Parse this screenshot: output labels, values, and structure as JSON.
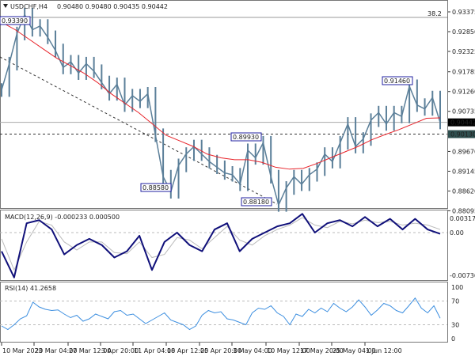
{
  "header": {
    "symbol": "USDCHF,H4",
    "ohlc": "0.90480 0.90480 0.90435 0.90442",
    "menu_icon": "triangle-down-icon"
  },
  "colors": {
    "price": "#5b7f99",
    "ma": "#e8242b",
    "macd": "#10107a",
    "signal": "#bbbbbb",
    "rsi": "#3d8fe0",
    "label_border": "#2020a0",
    "current_price_bg": "#000000",
    "level_bg": "#2f4f4f"
  },
  "chart_data": [
    {
      "type": "line",
      "title": "USDCHF,H4",
      "panel": "price",
      "y_ticks": [
        "0.93375",
        "0.92850",
        "0.92325",
        "0.91785",
        "0.91260",
        "0.90735",
        "0.89670",
        "0.89145",
        "0.88620",
        "0.88095"
      ],
      "ylim": [
        0.88095,
        0.93375
      ],
      "current_price": "0.90442",
      "level_line": "0.90130",
      "fib_label": "38.2",
      "annotations": [
        "0.93390",
        "0.88580",
        "0.89930",
        "0.88180",
        "0.91460"
      ],
      "close": [
        0.913,
        0.92,
        0.928,
        0.933,
        0.929,
        0.93,
        0.927,
        0.9235,
        0.919,
        0.9205,
        0.9175,
        0.92,
        0.918,
        0.915,
        0.912,
        0.9145,
        0.909,
        0.9115,
        0.91,
        0.912,
        0.901,
        0.89,
        0.886,
        0.893,
        0.896,
        0.898,
        0.896,
        0.894,
        0.8925,
        0.891,
        0.8905,
        0.888,
        0.897,
        0.895,
        0.899,
        0.89,
        0.8825,
        0.887,
        0.89,
        0.888,
        0.8905,
        0.892,
        0.896,
        0.894,
        0.899,
        0.904,
        0.898,
        0.9,
        0.905,
        0.907,
        0.904,
        0.907,
        0.906,
        0.914,
        0.909,
        0.908,
        0.911,
        0.9044
      ],
      "ma": [
        0.931,
        0.929,
        0.9265,
        0.924,
        0.9215,
        0.9195,
        0.9175,
        0.915,
        0.912,
        0.9095,
        0.907,
        0.904,
        0.901,
        0.8995,
        0.898,
        0.896,
        0.895,
        0.8945,
        0.8945,
        0.8938,
        0.8925,
        0.892,
        0.8922,
        0.8935,
        0.895,
        0.8965,
        0.898,
        0.8998,
        0.9012,
        0.9025,
        0.904,
        0.9055,
        0.9056
      ]
    },
    {
      "type": "line",
      "panel": "macd",
      "title": "MACD(12,26,9) -0.000233 0.000500",
      "y_ticks": [
        "0.003178",
        "0.00",
        "-0.007361"
      ],
      "macd": [
        -0.003,
        -0.0072,
        0.0015,
        0.002,
        0.0005,
        -0.0035,
        -0.002,
        -0.001,
        -0.002,
        -0.004,
        -0.003,
        -0.0005,
        -0.006,
        -0.0015,
        0.0,
        -0.002,
        -0.003,
        0.0005,
        0.0015,
        -0.003,
        -0.001,
        0.0,
        0.001,
        0.0015,
        0.003,
        0.0,
        0.0015,
        0.002,
        0.001,
        0.0025,
        0.001,
        0.0022,
        0.0005,
        0.0022,
        0.0005,
        -0.0002
      ],
      "signal": [
        -0.001,
        -0.006,
        -0.0015,
        0.0018,
        0.0012,
        -0.0015,
        -0.0028,
        -0.0015,
        -0.0015,
        -0.0032,
        -0.0034,
        -0.0015,
        -0.004,
        -0.0035,
        -0.0008,
        -0.0012,
        -0.0026,
        -0.0008,
        0.001,
        -0.0012,
        -0.002,
        -0.0005,
        0.0005,
        0.0012,
        0.0024,
        0.0012,
        0.0008,
        0.0018,
        0.0014,
        0.002,
        0.0016,
        0.0018,
        0.0012,
        0.0015,
        0.0012,
        0.0005
      ]
    },
    {
      "type": "line",
      "panel": "rsi",
      "title": "RSI(14) 41.2658",
      "y_ticks": [
        "100",
        "70",
        "30",
        "0"
      ],
      "levels": [
        70,
        30
      ],
      "rsi": [
        28,
        22,
        30,
        40,
        45,
        68,
        60,
        56,
        54,
        55,
        48,
        42,
        46,
        36,
        40,
        48,
        44,
        40,
        52,
        54,
        46,
        48,
        40,
        32,
        38,
        44,
        50,
        38,
        34,
        30,
        22,
        28,
        46,
        54,
        50,
        52,
        40,
        38,
        34,
        30,
        50,
        58,
        56,
        62,
        50,
        44,
        30,
        48,
        44,
        56,
        50,
        58,
        52,
        66,
        58,
        52,
        60,
        72,
        60,
        46,
        55,
        66,
        62,
        54,
        50,
        62,
        75,
        58,
        50,
        62,
        41
      ]
    }
  ],
  "time_axis": [
    "10 Mar 2023",
    "20 Mar 04:00",
    "27 Mar 12:00",
    "3 Apr 20:00",
    "11 Apr 04:00",
    "18 Apr 12:00",
    "25 Apr 20:00",
    "3 May 04:00",
    "10 May 12:00",
    "17 May 20:00",
    "25 May 04:00",
    "1 Jun 12:00"
  ]
}
